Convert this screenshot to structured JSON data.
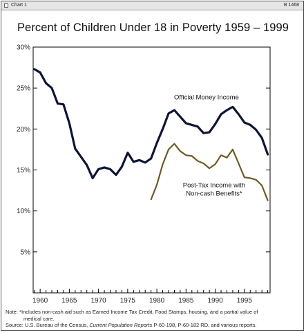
{
  "window": {
    "title": "Chart 1",
    "code": "B 1468"
  },
  "chart_data": {
    "type": "line",
    "title": "Percent of Children Under 18 in Poverty 1959 – 1999",
    "xlabel": "",
    "ylabel": "",
    "xlim": [
      1958.8,
      1999.4
    ],
    "ylim": [
      0,
      30
    ],
    "grid": false,
    "y_ticks": [
      5,
      10,
      15,
      20,
      25,
      30
    ],
    "y_tick_labels": [
      "5%",
      "10%",
      "15%",
      "20%",
      "25%",
      "30%"
    ],
    "x_ticks": [
      1960,
      1965,
      1970,
      1975,
      1980,
      1985,
      1990,
      1995
    ],
    "x_tick_labels": [
      "1960",
      "1965",
      "1970",
      "1975",
      "1980",
      "1985",
      "1990",
      "1995"
    ],
    "series": [
      {
        "name": "Official Money Income",
        "label": "Official Money Income",
        "color": "#0d1535",
        "x": [
          1959,
          1960,
          1961,
          1962,
          1963,
          1964,
          1965,
          1966,
          1967,
          1968,
          1969,
          1970,
          1971,
          1972,
          1973,
          1974,
          1975,
          1976,
          1977,
          1978,
          1979,
          1980,
          1981,
          1982,
          1983,
          1984,
          1985,
          1986,
          1987,
          1988,
          1989,
          1990,
          1991,
          1992,
          1993,
          1994,
          1995,
          1996,
          1997,
          1998,
          1999
        ],
        "values": [
          27.3,
          26.9,
          25.6,
          25.0,
          23.1,
          23.0,
          20.7,
          17.6,
          16.6,
          15.6,
          14.0,
          15.1,
          15.3,
          15.1,
          14.4,
          15.4,
          17.1,
          16.0,
          16.2,
          15.9,
          16.4,
          18.3,
          20.0,
          21.9,
          22.3,
          21.5,
          20.7,
          20.5,
          20.3,
          19.5,
          19.6,
          20.6,
          21.8,
          22.3,
          22.7,
          21.8,
          20.8,
          20.5,
          19.9,
          18.9,
          16.9
        ]
      },
      {
        "name": "Post-Tax Income with Non-cash Benefits*",
        "label_lines": [
          "Post-Tax Income with",
          "Non-cash Benefits*"
        ],
        "color": "#6e5a26",
        "x": [
          1979,
          1980,
          1981,
          1982,
          1983,
          1984,
          1985,
          1986,
          1987,
          1988,
          1989,
          1990,
          1991,
          1992,
          1993,
          1994,
          1995,
          1996,
          1997,
          1998,
          1999
        ],
        "values": [
          11.4,
          13.2,
          15.7,
          17.5,
          18.2,
          17.3,
          16.8,
          16.7,
          16.1,
          15.8,
          15.2,
          15.7,
          16.8,
          16.5,
          17.5,
          15.8,
          14.1,
          14.0,
          13.8,
          13.1,
          11.3
        ]
      }
    ]
  },
  "notes": {
    "note_prefix": "Note:",
    "note_line1": "*Includes non-cash aid such as Earned Income Tax Credit, Food Stamps, housing, and a partial value of",
    "note_line2": "medical care.",
    "source_prefix": "Source:",
    "source_pre": "U.S. Bureau of the Census,",
    "source_italic": "Current Population Reports",
    "source_post": "P-60-198, P-60-182 RD, and various reports."
  }
}
